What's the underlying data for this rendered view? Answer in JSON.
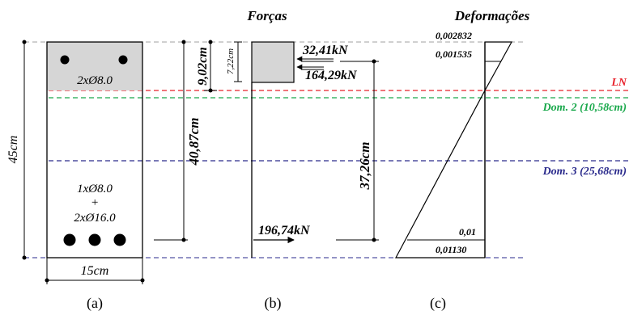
{
  "section": {
    "width_label": "15cm",
    "height_label": "45cm",
    "top_bars_label": "2xØ8.0",
    "bottom_bars_line1": "1xØ8.0",
    "bottom_bars_plus": "+",
    "bottom_bars_line2": "2xØ16.0",
    "d_label": "40,87cm",
    "x_label": "9,02cm",
    "y_label": "7,22cm",
    "caption": "(a)"
  },
  "forces": {
    "title": "Forças",
    "steel_comp": "32,41kN",
    "concrete_comp": "164,29kN",
    "lever_arm": "37,26cm",
    "tension": "196,74kN",
    "caption": "(b)"
  },
  "strains": {
    "title": "Deformações",
    "top": "0,002832",
    "steel_top": "0,001535",
    "limit": "0,01",
    "bottom": "0,01130",
    "caption": "(c)"
  },
  "lines": {
    "ln": "LN",
    "dom2": "Dom. 2 (10,58cm)",
    "dom3": "Dom. 3 (25,68cm)"
  },
  "colors": {
    "ln": "#e8202a",
    "dom2": "#19a84b",
    "dom3": "#2a2a8c",
    "compression_zone": "#d6d6d6",
    "reference_line": "#a0a0a0"
  }
}
